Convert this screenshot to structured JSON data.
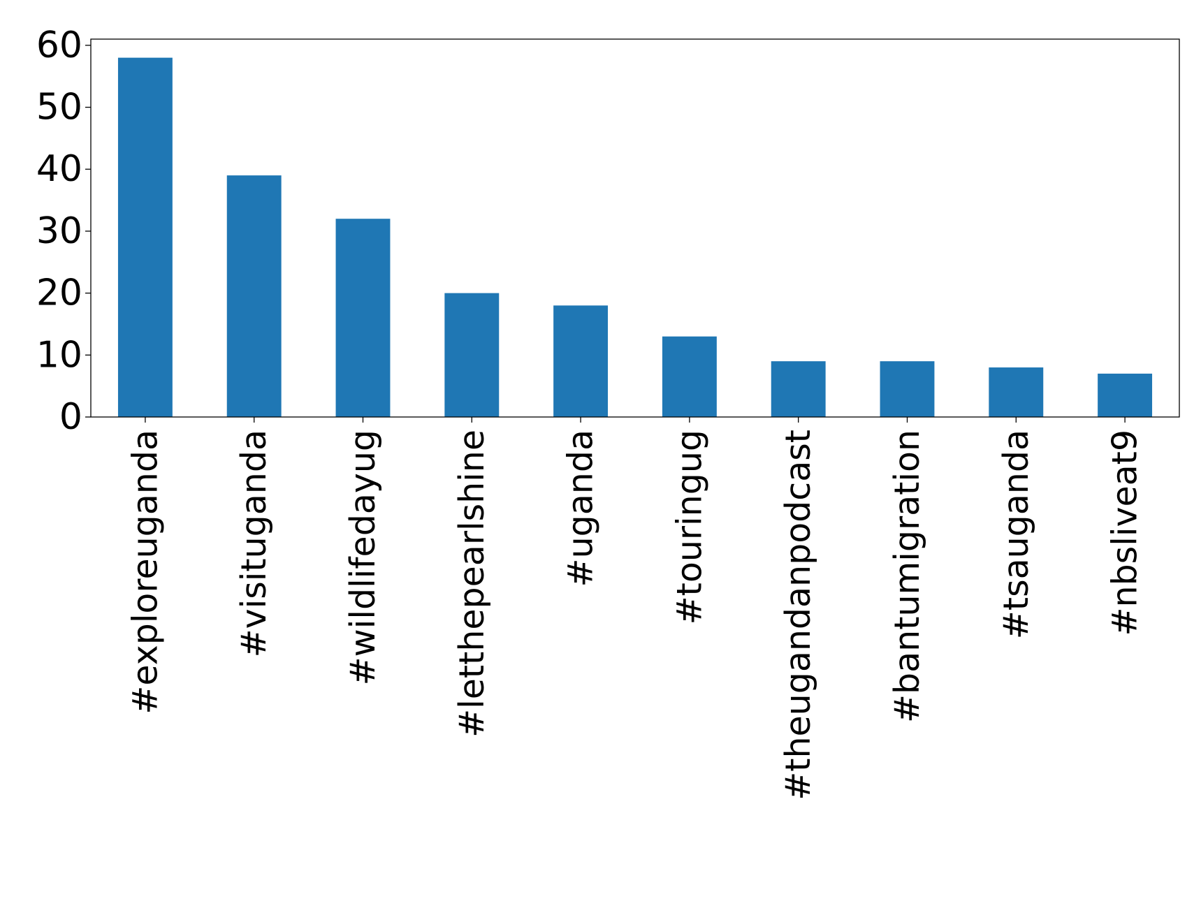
{
  "chart_data": {
    "type": "bar",
    "title": "",
    "xlabel": "",
    "ylabel": "",
    "categories": [
      "#exploreuganda",
      "#visituganda",
      "#wildlifedayug",
      "#letthepearlshine",
      "#uganda",
      "#touringug",
      "#theugandanpodcast",
      "#bantumigration",
      "#tsauganda",
      "#nbsliveat9"
    ],
    "values": [
      58,
      39,
      32,
      20,
      18,
      13,
      9,
      9,
      8,
      7
    ],
    "ylim": [
      0,
      61
    ],
    "yticks": [
      0,
      10,
      20,
      30,
      40,
      50,
      60
    ],
    "grid": false,
    "legend": "none",
    "colors": {
      "bar": "#1f77b4",
      "axis": "#000000",
      "background": "#ffffff"
    }
  }
}
